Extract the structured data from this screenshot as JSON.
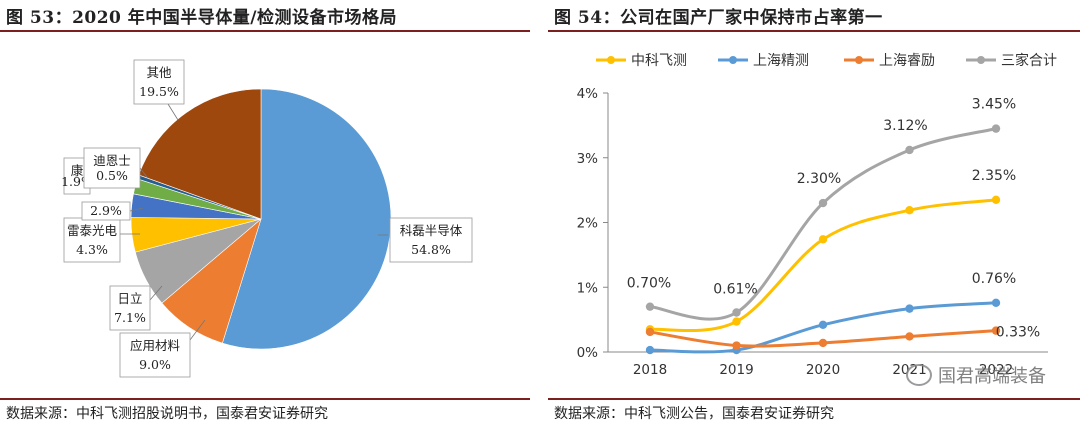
{
  "left_panel": {
    "figure_title": "图  53：2020 年中国半导体量/检测设备市场格局",
    "source": "数据来源：中科飞测招股说明书，国泰君安证券研究"
  },
  "right_panel": {
    "figure_title": "图  54：公司在国产厂家中保持市占率第一",
    "source": "数据来源：中科飞测公告，国泰君安证券研究"
  },
  "watermark": {
    "text": "国君高端装备"
  },
  "chart_data": [
    {
      "type": "pie",
      "title": "2020 年中国半导体量/检测设备市场格局",
      "slices": [
        {
          "name": "科磊半导体",
          "value": 54.8,
          "label": "54.8%",
          "color": "#5b9bd5"
        },
        {
          "name": "应用材料",
          "value": 9.0,
          "label": "9.0%",
          "color": "#ed7d31"
        },
        {
          "name": "日立",
          "value": 7.1,
          "label": "7.1%",
          "color": "#a5a5a5"
        },
        {
          "name": "雷泰光电",
          "value": 4.3,
          "label": "4.3%",
          "color": "#ffc000"
        },
        {
          "name": "",
          "value": 2.9,
          "label": "2.9%",
          "color": "#4472c4"
        },
        {
          "name": "康",
          "value": 1.9,
          "label": "1.9%",
          "color": "#70ad47"
        },
        {
          "name": "迪恩士",
          "value": 0.5,
          "label": "0.5%",
          "color": "#255e91"
        },
        {
          "name": "其他",
          "value": 19.5,
          "label": "19.5%",
          "color": "#9e480e"
        }
      ]
    },
    {
      "type": "line",
      "title": "公司在国产厂家中保持市占率第一",
      "x": [
        "2018",
        "2019",
        "2020",
        "2021",
        "2022"
      ],
      "ylim": [
        0,
        4
      ],
      "yticks": [
        "0%",
        "1%",
        "2%",
        "3%",
        "4%"
      ],
      "legend_position": "top",
      "series": [
        {
          "name": "中科飞测",
          "color": "#ffc000",
          "values": [
            0.35,
            0.47,
            1.74,
            2.19,
            2.35
          ],
          "data_labels": [
            "",
            "",
            "",
            "",
            "2.35%"
          ]
        },
        {
          "name": "上海精测",
          "color": "#5b9bd5",
          "values": [
            0.03,
            0.03,
            0.42,
            0.67,
            0.76
          ],
          "data_labels": [
            "",
            "",
            "",
            "",
            "0.76%"
          ]
        },
        {
          "name": "上海睿励",
          "color": "#ed7d31",
          "values": [
            0.31,
            0.1,
            0.14,
            0.24,
            0.33
          ],
          "data_labels": [
            "",
            "",
            "",
            "",
            "0.33%"
          ]
        },
        {
          "name": "三家合计",
          "color": "#a5a5a5",
          "values": [
            0.7,
            0.61,
            2.3,
            3.12,
            3.45
          ],
          "data_labels": [
            "0.70%",
            "0.61%",
            "2.30%",
            "3.12%",
            "3.45%"
          ]
        }
      ]
    }
  ]
}
